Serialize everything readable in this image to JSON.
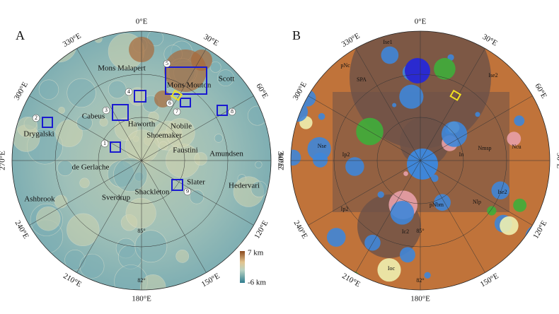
{
  "panels": [
    {
      "label": "A",
      "longitudes": [
        "0°E",
        "30°E",
        "60°E",
        "90°E",
        "120°E",
        "150°E",
        "180°E",
        "210°E",
        "240°E",
        "270°E",
        "300°E",
        "330°E"
      ],
      "grid_labels": [
        "85°",
        "82°"
      ],
      "features": [
        "Mons Malapert",
        "Mons Mouton",
        "Scott",
        "Cabeus",
        "Haworth",
        "Shoemaker",
        "Nobile",
        "Faustini",
        "Amundsen",
        "Drygalski",
        "de Gerlache",
        "Slater",
        "Hedervari",
        "Shackleton",
        "Sverdrup",
        "Ashbrook"
      ],
      "sites": [
        "1",
        "2",
        "3",
        "4",
        "5",
        "6",
        "7",
        "8",
        "9"
      ]
    },
    {
      "label": "B",
      "longitudes": [
        "0°E",
        "30°E",
        "60°E",
        "90°E",
        "120°E",
        "150°E",
        "180°E",
        "210°E",
        "240°E",
        "270°E",
        "300°E",
        "330°E"
      ],
      "grid_labels": [
        "85°",
        "82°"
      ],
      "features": [
        "Ise1",
        "pNc",
        "SPA",
        "Ise2",
        "Nse",
        "Ip2",
        "Nmsp",
        "Ncu",
        "In",
        "Ise2",
        "Nlp",
        "pNbm",
        "Ip2",
        "Ic2",
        "Ioc"
      ]
    }
  ],
  "colorbar": {
    "max": "7 km",
    "min": "-6 km"
  }
}
